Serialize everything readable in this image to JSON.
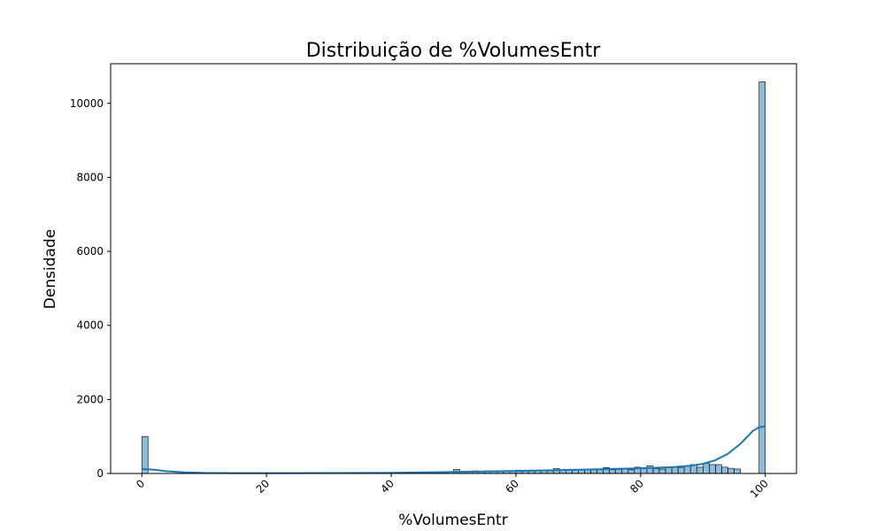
{
  "chart_data": {
    "type": "bar",
    "title": "Distribuição de %VolumesEntr",
    "xlabel": "%VolumesEntr",
    "ylabel": "Densidade",
    "xlim": [
      -5,
      105
    ],
    "ylim": [
      0,
      11070
    ],
    "x_ticks": [
      0,
      20,
      40,
      60,
      80,
      100
    ],
    "y_ticks": [
      0,
      2000,
      4000,
      6000,
      8000,
      10000
    ],
    "grid": false,
    "bar_color": "#1f77b4",
    "bar_opacity": 0.5,
    "line_color": "#1f77b4",
    "bin_width": 1,
    "bins": [
      [
        0,
        1000
      ],
      [
        50,
        110
      ],
      [
        51,
        50
      ],
      [
        52,
        60
      ],
      [
        53,
        70
      ],
      [
        54,
        50
      ],
      [
        55,
        70
      ],
      [
        56,
        60
      ],
      [
        57,
        60
      ],
      [
        58,
        70
      ],
      [
        59,
        60
      ],
      [
        60,
        90
      ],
      [
        61,
        70
      ],
      [
        62,
        80
      ],
      [
        63,
        80
      ],
      [
        64,
        70
      ],
      [
        65,
        70
      ],
      [
        66,
        130
      ],
      [
        67,
        90
      ],
      [
        68,
        100
      ],
      [
        69,
        90
      ],
      [
        70,
        110
      ],
      [
        71,
        100
      ],
      [
        72,
        110
      ],
      [
        73,
        100
      ],
      [
        74,
        160
      ],
      [
        75,
        100
      ],
      [
        76,
        110
      ],
      [
        77,
        120
      ],
      [
        78,
        100
      ],
      [
        79,
        170
      ],
      [
        80,
        130
      ],
      [
        81,
        210
      ],
      [
        82,
        130
      ],
      [
        83,
        120
      ],
      [
        84,
        160
      ],
      [
        85,
        170
      ],
      [
        86,
        150
      ],
      [
        87,
        200
      ],
      [
        88,
        240
      ],
      [
        89,
        170
      ],
      [
        90,
        270
      ],
      [
        91,
        240
      ],
      [
        92,
        240
      ],
      [
        93,
        170
      ],
      [
        94,
        140
      ],
      [
        95,
        120
      ],
      [
        99,
        10580
      ]
    ],
    "kde": [
      [
        0,
        120
      ],
      [
        2,
        100
      ],
      [
        4,
        60
      ],
      [
        7,
        30
      ],
      [
        10,
        15
      ],
      [
        15,
        10
      ],
      [
        20,
        10
      ],
      [
        30,
        12
      ],
      [
        40,
        20
      ],
      [
        50,
        40
      ],
      [
        60,
        70
      ],
      [
        70,
        100
      ],
      [
        80,
        140
      ],
      [
        85,
        170
      ],
      [
        88,
        210
      ],
      [
        90,
        260
      ],
      [
        92,
        360
      ],
      [
        94,
        530
      ],
      [
        96,
        800
      ],
      [
        98,
        1150
      ],
      [
        99,
        1250
      ],
      [
        100,
        1270
      ]
    ]
  }
}
